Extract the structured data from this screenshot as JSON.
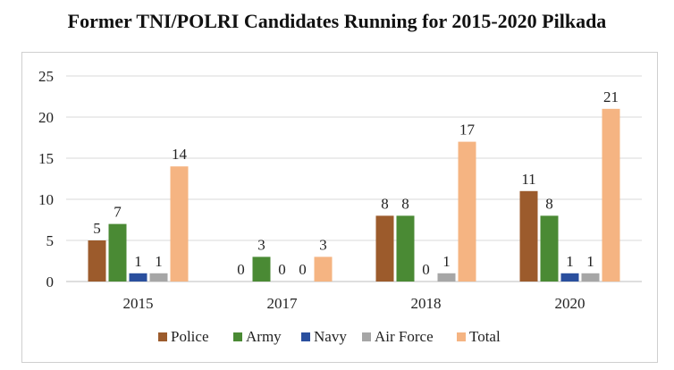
{
  "chart_data": {
    "type": "bar",
    "title": "Former TNI/POLRI Candidates Running for 2015-2020 Pilkada",
    "categories": [
      "2015",
      "2017",
      "2018",
      "2020"
    ],
    "series": [
      {
        "name": "Police",
        "color": "#9c5b2c",
        "values": [
          5,
          0,
          8,
          11
        ]
      },
      {
        "name": "Army",
        "color": "#4a8a34",
        "values": [
          7,
          3,
          8,
          8
        ]
      },
      {
        "name": "Navy",
        "color": "#2a4f9e",
        "values": [
          1,
          0,
          0,
          1
        ]
      },
      {
        "name": "Air Force",
        "color": "#a6a6a6",
        "values": [
          1,
          0,
          1,
          1
        ]
      },
      {
        "name": "Total",
        "color": "#f5b482",
        "values": [
          14,
          3,
          17,
          21
        ]
      }
    ],
    "ylim": [
      0,
      25
    ],
    "yticks": [
      0,
      5,
      10,
      15,
      20,
      25
    ],
    "grid": true,
    "legend_position": "bottom",
    "xlabel": "",
    "ylabel": ""
  }
}
